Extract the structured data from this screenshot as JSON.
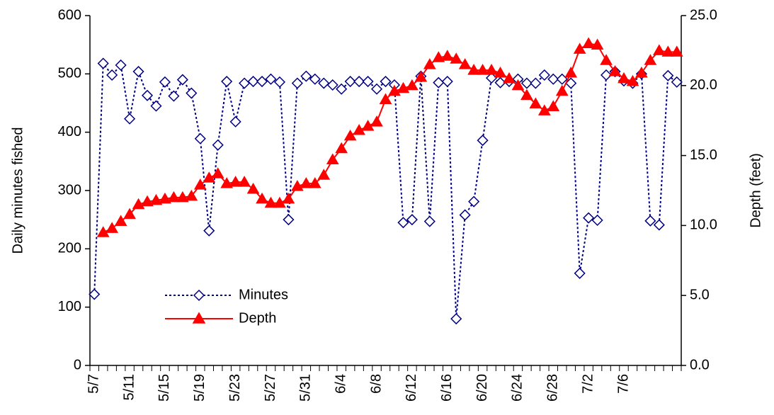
{
  "chart_data": {
    "type": "line",
    "y_label": "Daily minutes fished",
    "y2_label": "Depth (feet)",
    "categories": [
      "5/7",
      null,
      null,
      null,
      "5/11",
      null,
      null,
      null,
      "5/15",
      null,
      null,
      null,
      "5/19",
      null,
      null,
      null,
      "5/23",
      null,
      null,
      null,
      "5/27",
      null,
      null,
      null,
      "5/31",
      null,
      null,
      null,
      "6/4",
      null,
      null,
      null,
      "6/8",
      null,
      null,
      null,
      "6/12",
      null,
      null,
      null,
      "6/16",
      null,
      null,
      null,
      "6/20",
      null,
      null,
      null,
      "6/24",
      null,
      null,
      null,
      "6/28",
      null,
      null,
      null,
      "7/2",
      null,
      null,
      null,
      "7/6",
      null,
      null,
      null,
      null,
      null,
      null
    ],
    "series": [
      {
        "name": "Minutes",
        "color": "#000080",
        "axis": "y",
        "marker": "diamond",
        "dashed": true,
        "values": [
          122,
          518,
          498,
          515,
          423,
          504,
          463,
          445,
          486,
          462,
          490,
          467,
          389,
          231,
          378,
          487,
          418,
          484,
          487,
          487,
          491,
          486,
          250,
          484,
          496,
          491,
          484,
          481,
          474,
          487,
          487,
          487,
          474,
          487,
          481,
          245,
          250,
          496,
          247,
          485,
          487,
          80,
          258,
          281,
          386,
          493,
          485,
          487,
          491,
          484,
          484,
          498,
          491,
          491,
          484,
          158,
          253,
          249,
          498,
          504,
          488,
          484,
          500,
          248,
          241,
          497,
          486
        ]
      },
      {
        "name": "Depth",
        "color": "#ff0000",
        "axis": "y2",
        "marker": "triangle",
        "dashed": false,
        "values": [
          null,
          9.5,
          9.8,
          10.3,
          10.8,
          11.5,
          11.7,
          11.8,
          11.9,
          12.0,
          12.0,
          12.1,
          12.9,
          13.4,
          13.7,
          13.0,
          13.1,
          13.1,
          12.6,
          11.9,
          11.6,
          11.6,
          11.9,
          12.8,
          13.0,
          13.0,
          13.6,
          14.7,
          15.5,
          16.4,
          16.8,
          17.1,
          17.4,
          19.0,
          19.6,
          19.8,
          20.0,
          20.6,
          21.5,
          22.0,
          22.1,
          21.9,
          21.5,
          21.1,
          21.1,
          21.1,
          20.9,
          20.5,
          20.0,
          19.3,
          18.7,
          18.2,
          18.5,
          19.6,
          20.9,
          22.6,
          23.0,
          22.9,
          21.8,
          21.0,
          20.5,
          20.3,
          20.9,
          21.8,
          22.5,
          22.4,
          22.4
        ]
      }
    ],
    "ylim": [
      0,
      600
    ],
    "yticks": [
      0,
      100,
      200,
      300,
      400,
      500,
      600
    ],
    "y2lim": [
      0,
      25
    ],
    "y2ticks": [
      {
        "value": 0,
        "label": "0.0"
      },
      {
        "value": 5,
        "label": "5.0"
      },
      {
        "value": 10,
        "label": "10.0"
      },
      {
        "value": 15,
        "label": "15.0"
      },
      {
        "value": 20,
        "label": "20.0"
      },
      {
        "value": 25,
        "label": "25.0"
      }
    ],
    "grid": false,
    "legend": "lower-left"
  }
}
